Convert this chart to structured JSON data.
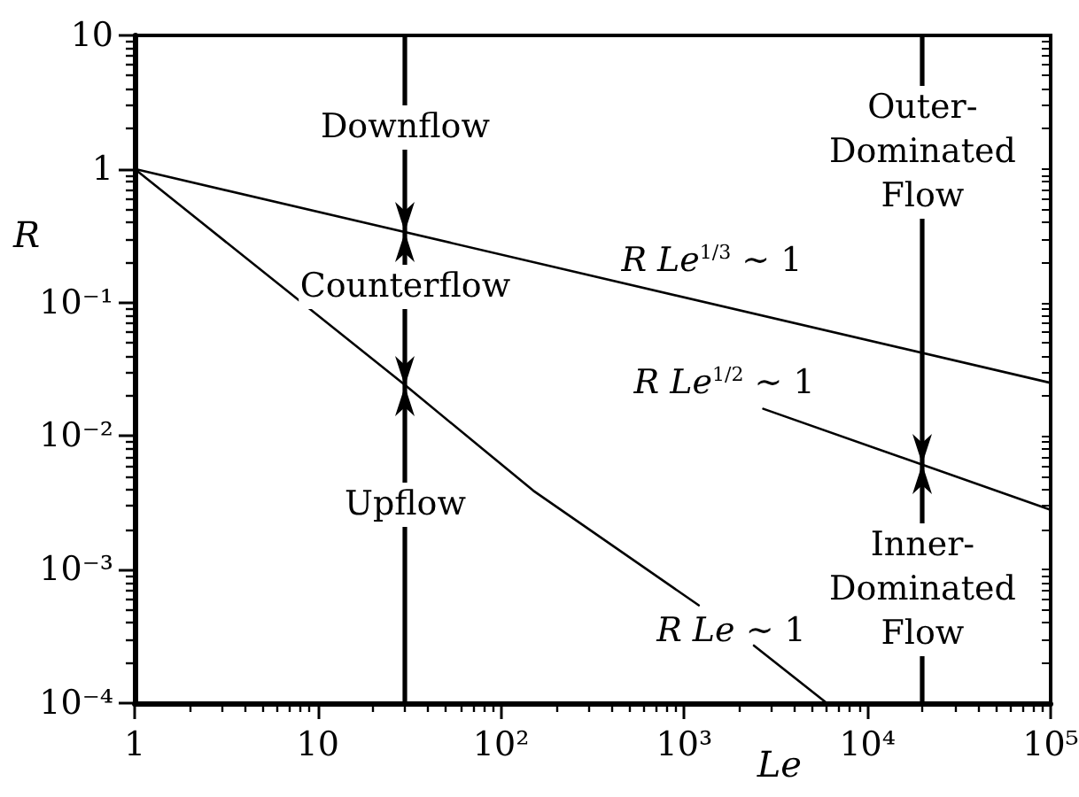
{
  "chart_data": {
    "type": "line",
    "xlabel": "Le",
    "ylabel": "R",
    "log": "xy",
    "xlim": [
      1,
      100000
    ],
    "ylim": [
      0.0001,
      10
    ],
    "xticks": [
      1,
      {
        "value": 2,
        "label": null
      },
      {
        "value": 3,
        "label": null
      },
      {
        "value": 4,
        "label": null
      },
      {
        "value": 5,
        "label": null
      },
      {
        "value": 6,
        "label": null
      },
      {
        "value": 7,
        "label": null
      },
      {
        "value": 8,
        "label": null
      },
      {
        "value": 9,
        "label": null
      },
      10,
      {
        "value": 20,
        "label": null
      },
      {
        "value": 30,
        "label": null
      },
      {
        "value": 40,
        "label": null
      },
      {
        "value": 50,
        "label": null
      },
      {
        "value": 60,
        "label": null
      },
      {
        "value": 70,
        "label": null
      },
      {
        "value": 80,
        "label": null
      },
      {
        "value": 90,
        "label": null
      },
      {
        "value": 100,
        "label": "10²"
      },
      {
        "value": 200,
        "label": null
      },
      {
        "value": 300,
        "label": null
      },
      {
        "value": 400,
        "label": null
      },
      {
        "value": 500,
        "label": null
      },
      {
        "value": 600,
        "label": null
      },
      {
        "value": 700,
        "label": null
      },
      {
        "value": 800,
        "label": null
      },
      {
        "value": 900,
        "label": null
      },
      {
        "value": 1000,
        "label": "10³"
      },
      {
        "value": 2000,
        "label": null
      },
      {
        "value": 3000,
        "label": null
      },
      {
        "value": 4000,
        "label": null
      },
      {
        "value": 5000,
        "label": null
      },
      {
        "value": 6000,
        "label": null
      },
      {
        "value": 7000,
        "label": null
      },
      {
        "value": 8000,
        "label": null
      },
      {
        "value": 9000,
        "label": null
      },
      {
        "value": 10000,
        "label": "10⁴"
      },
      {
        "value": 20000,
        "label": null
      },
      {
        "value": 30000,
        "label": null
      },
      {
        "value": 40000,
        "label": null
      },
      {
        "value": 50000,
        "label": null
      },
      {
        "value": 60000,
        "label": null
      },
      {
        "value": 70000,
        "label": null
      },
      {
        "value": 80000,
        "label": null
      },
      {
        "value": 90000,
        "label": null
      },
      {
        "value": 100000,
        "label": "10⁵"
      }
    ],
    "yticks": [
      {
        "value": 0.0001,
        "label": "10⁻⁴"
      },
      {
        "value": 0.0002,
        "label": null
      },
      {
        "value": 0.0003,
        "label": null
      },
      {
        "value": 0.0004,
        "label": null
      },
      {
        "value": 0.0005,
        "label": null
      },
      {
        "value": 0.0006,
        "label": null
      },
      {
        "value": 0.0007,
        "label": null
      },
      {
        "value": 0.0008,
        "label": null
      },
      {
        "value": 0.0009,
        "label": null
      },
      {
        "value": 0.001,
        "label": "10⁻³"
      },
      {
        "value": 0.002,
        "label": null
      },
      {
        "value": 0.003,
        "label": null
      },
      {
        "value": 0.004,
        "label": null
      },
      {
        "value": 0.005,
        "label": null
      },
      {
        "value": 0.006,
        "label": null
      },
      {
        "value": 0.007,
        "label": null
      },
      {
        "value": 0.008,
        "label": null
      },
      {
        "value": 0.009,
        "label": null
      },
      {
        "value": 0.01,
        "label": "10⁻²"
      },
      {
        "value": 0.02,
        "label": null
      },
      {
        "value": 0.03,
        "label": null
      },
      {
        "value": 0.04,
        "label": null
      },
      {
        "value": 0.05,
        "label": null
      },
      {
        "value": 0.06,
        "label": null
      },
      {
        "value": 0.07,
        "label": null
      },
      {
        "value": 0.08,
        "label": null
      },
      {
        "value": 0.09,
        "label": null
      },
      {
        "value": 0.1,
        "label": "10⁻¹"
      },
      {
        "value": 0.2,
        "label": null
      },
      {
        "value": 0.3,
        "label": null
      },
      {
        "value": 0.4,
        "label": null
      },
      {
        "value": 0.5,
        "label": null
      },
      {
        "value": 0.6,
        "label": null
      },
      {
        "value": 0.7,
        "label": null
      },
      {
        "value": 0.8,
        "label": null
      },
      {
        "value": 0.9,
        "label": null
      },
      1,
      {
        "value": 2,
        "label": null
      },
      {
        "value": 3,
        "label": null
      },
      {
        "value": 4,
        "label": null
      },
      {
        "value": 5,
        "label": null
      },
      {
        "value": 6,
        "label": null
      },
      {
        "value": 7,
        "label": null
      },
      {
        "value": 8,
        "label": null
      },
      {
        "value": 9,
        "label": null
      },
      10
    ],
    "series": [
      {
        "name": "R Le$^{1/3}$ ∼ 1",
        "color": "#000000",
        "x": [
          1,
          100000
        ],
        "values": [
          1,
          0.025
        ]
      },
      {
        "name": "R Le$^{1/2}$ ∼ 1",
        "color": "#000000",
        "x": [
          2700,
          100000
        ],
        "values": [
          0.016,
          0.0028
        ]
      },
      {
        "name": "R Le ∼ 1",
        "color": "#000000",
        "x": [
          1,
          30,
          150,
          1200,
          1800,
          2400,
          6000
        ],
        "values": [
          1,
          0.024,
          0.0039,
          0.00054,
          null,
          0.00027,
          0.0001
        ]
      }
    ],
    "ref_lines": [
      {
        "axis": "x",
        "value": 30,
        "color": "#000000"
      },
      {
        "axis": "x",
        "value": 20000,
        "color": "#000000"
      }
    ],
    "annotations": [
      "Downflow",
      "Counterflow",
      "Upflow",
      "Outer-Dominated Flow",
      "Inner-Dominated Flow"
    ]
  }
}
